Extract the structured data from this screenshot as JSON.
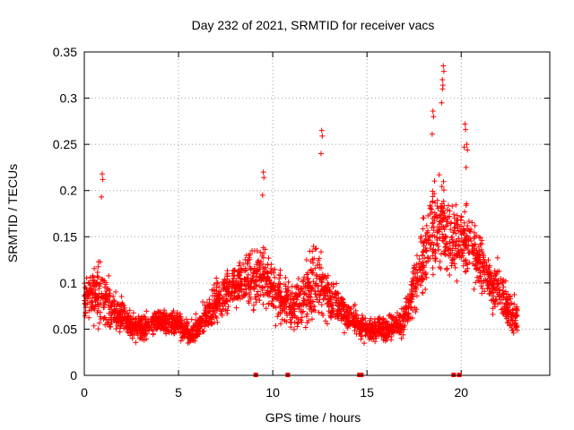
{
  "chart_data": {
    "type": "scatter",
    "title": "Day 232 of 2021, SRMTID for receiver vacs",
    "xlabel": "GPS time / hours",
    "ylabel": "SRMTID / TECUs",
    "xlim": [
      0,
      24.7
    ],
    "ylim": [
      0,
      0.35
    ],
    "x_ticks": [
      0,
      5,
      10,
      15,
      20
    ],
    "x_tick_labels": [
      "0",
      "5",
      "10",
      "15",
      "20"
    ],
    "y_ticks": [
      0,
      0.05,
      0.1,
      0.15,
      0.2,
      0.25,
      0.3,
      0.35
    ],
    "y_tick_labels": [
      "0",
      "0.05",
      "0.1",
      "0.15",
      "0.2",
      "0.25",
      "0.3",
      "0.35"
    ],
    "grid": true,
    "marker": "+",
    "color": "#ff0000",
    "gap_markers_x": [
      9.1,
      10.8,
      14.6,
      14.7,
      19.6,
      19.9
    ],
    "series": [
      {
        "name": "SRMTID",
        "x": [
          0.0,
          0.5,
          1.0,
          1.5,
          2.0,
          2.5,
          3.0,
          3.5,
          4.0,
          4.5,
          5.0,
          5.5,
          6.0,
          6.5,
          7.0,
          7.5,
          8.0,
          8.5,
          9.0,
          9.5,
          10.0,
          10.5,
          11.0,
          11.5,
          12.0,
          12.5,
          13.0,
          13.5,
          14.0,
          14.5,
          15.0,
          15.5,
          16.0,
          16.5,
          17.0,
          17.5,
          18.0,
          18.5,
          19.0,
          19.5,
          20.0,
          20.5,
          21.0,
          21.5,
          22.0,
          22.5,
          23.0
        ],
        "y": [
          0.08,
          0.09,
          0.085,
          0.07,
          0.065,
          0.055,
          0.05,
          0.055,
          0.06,
          0.06,
          0.055,
          0.045,
          0.05,
          0.065,
          0.08,
          0.09,
          0.095,
          0.1,
          0.11,
          0.105,
          0.095,
          0.08,
          0.075,
          0.08,
          0.095,
          0.1,
          0.085,
          0.075,
          0.065,
          0.055,
          0.05,
          0.05,
          0.05,
          0.055,
          0.06,
          0.1,
          0.13,
          0.16,
          0.17,
          0.14,
          0.15,
          0.14,
          0.12,
          0.1,
          0.09,
          0.075,
          0.06
        ],
        "spread": [
          0.025,
          0.04,
          0.05,
          0.03,
          0.025,
          0.02,
          0.02,
          0.02,
          0.02,
          0.02,
          0.02,
          0.018,
          0.02,
          0.025,
          0.035,
          0.035,
          0.035,
          0.035,
          0.045,
          0.045,
          0.04,
          0.035,
          0.03,
          0.04,
          0.06,
          0.05,
          0.035,
          0.03,
          0.025,
          0.02,
          0.018,
          0.018,
          0.018,
          0.02,
          0.025,
          0.045,
          0.055,
          0.06,
          0.07,
          0.05,
          0.06,
          0.045,
          0.04,
          0.035,
          0.04,
          0.03,
          0.025
        ]
      }
    ],
    "peaks": [
      {
        "x": 0.95,
        "y": 0.218
      },
      {
        "x": 9.5,
        "y": 0.22
      },
      {
        "x": 12.6,
        "y": 0.265
      },
      {
        "x": 18.5,
        "y": 0.286
      },
      {
        "x": 19.05,
        "y": 0.335
      },
      {
        "x": 19.0,
        "y": 0.32
      },
      {
        "x": 20.2,
        "y": 0.272
      },
      {
        "x": 20.3,
        "y": 0.25
      }
    ]
  }
}
